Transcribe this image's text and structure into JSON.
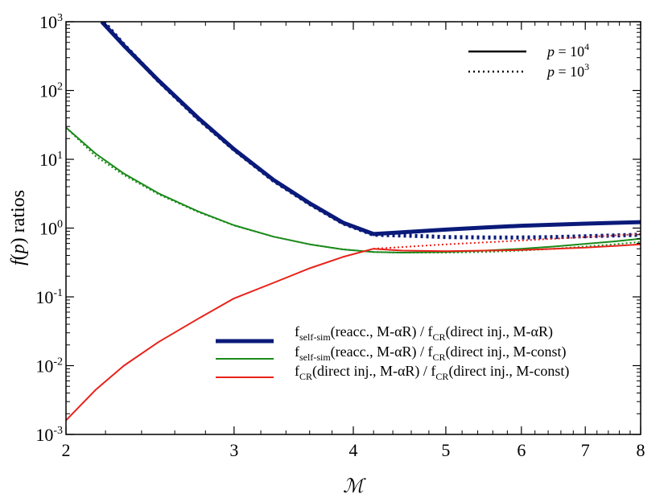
{
  "chart_data": {
    "type": "line",
    "xlabel": "ℳ",
    "ylabel_parts": {
      "f": "f",
      "open": "(",
      "p": "p",
      "close": ")",
      "rest": " ratios"
    },
    "xscale": "log",
    "yscale": "log",
    "xlim": [
      2,
      8
    ],
    "ylim": [
      0.001,
      1000
    ],
    "x_ticks": [
      2,
      3,
      4,
      5,
      6,
      7,
      8
    ],
    "x_tick_labels": [
      "2",
      "3",
      "4",
      "5",
      "6",
      "7",
      "8"
    ],
    "y_ticks": [
      {
        "value": 0.001,
        "base": "10",
        "exp": "-3"
      },
      {
        "value": 0.01,
        "base": "10",
        "exp": "-2"
      },
      {
        "value": 0.1,
        "base": "10",
        "exp": "-1"
      },
      {
        "value": 1,
        "base": "10",
        "exp": "0"
      },
      {
        "value": 10,
        "base": "10",
        "exp": "1"
      },
      {
        "value": 100,
        "base": "10",
        "exp": "2"
      },
      {
        "value": 1000,
        "base": "10",
        "exp": "3"
      }
    ],
    "line_style_legend": [
      {
        "style": "solid",
        "p": "p",
        "eq": " = ",
        "base": "10",
        "exp": "4"
      },
      {
        "style": "dotted",
        "p": "p",
        "eq": " = ",
        "base": "10",
        "exp": "3"
      }
    ],
    "series_legend": [
      {
        "color": "#0a1a7a",
        "width": 5,
        "parts": [
          "f",
          "self-sim",
          "(reacc., M-αR) / f",
          "CR",
          "(direct inj., M-αR)"
        ]
      },
      {
        "color": "#1a8a1a",
        "width": 2,
        "parts": [
          "f",
          "self-sim",
          "(reacc., M-αR) / f",
          "CR",
          "(direct inj., M-const)"
        ]
      },
      {
        "color": "#e8221a",
        "width": 2,
        "parts": [
          "f",
          "CR",
          "(direct inj., M-αR) / f",
          "CR",
          "(direct inj., M-const)"
        ]
      }
    ],
    "series": [
      {
        "color": "#0a1a7a",
        "width": 5,
        "style": "solid",
        "x": [
          2.18,
          2.3,
          2.5,
          2.75,
          3.0,
          3.3,
          3.6,
          3.9,
          4.2,
          4.5,
          5.0,
          5.5,
          6.0,
          6.5,
          7.0,
          7.5,
          8.0
        ],
        "y": [
          1000,
          450,
          140,
          40,
          14,
          5.0,
          2.3,
          1.2,
          0.82,
          0.87,
          0.95,
          1.02,
          1.08,
          1.12,
          1.16,
          1.19,
          1.22
        ]
      },
      {
        "color": "#0a1a7a",
        "width": 5,
        "style": "dotted",
        "x": [
          2.19,
          2.3,
          2.5,
          2.75,
          3.0,
          3.3,
          3.6,
          3.9,
          4.2,
          4.5,
          5.0,
          5.5,
          6.0,
          6.5,
          7.0,
          7.5,
          8.0
        ],
        "y": [
          1000,
          460,
          138,
          39,
          13.8,
          4.9,
          2.25,
          1.18,
          0.8,
          0.78,
          0.74,
          0.73,
          0.73,
          0.74,
          0.76,
          0.78,
          0.8
        ]
      },
      {
        "color": "#1a8a1a",
        "width": 2,
        "style": "solid",
        "x": [
          2.0,
          2.15,
          2.3,
          2.5,
          2.75,
          3.0,
          3.3,
          3.6,
          3.9,
          4.2,
          4.5,
          5.0,
          5.5,
          6.0,
          6.5,
          7.0,
          7.5,
          8.0
        ],
        "y": [
          29,
          12,
          6.2,
          3.2,
          1.75,
          1.1,
          0.75,
          0.58,
          0.49,
          0.45,
          0.44,
          0.45,
          0.47,
          0.5,
          0.54,
          0.59,
          0.64,
          0.7
        ]
      },
      {
        "color": "#1a8a1a",
        "width": 2,
        "style": "dotted",
        "x": [
          2.0,
          2.15,
          2.3,
          2.5,
          2.75,
          3.0,
          3.3,
          3.6,
          3.9,
          4.2,
          4.5,
          5.0,
          5.5,
          6.0,
          6.5,
          7.0,
          7.5,
          8.0
        ],
        "y": [
          29,
          11,
          5.9,
          3.1,
          1.72,
          1.09,
          0.75,
          0.58,
          0.49,
          0.45,
          0.44,
          0.44,
          0.45,
          0.47,
          0.5,
          0.54,
          0.58,
          0.63
        ]
      },
      {
        "color": "#e8221a",
        "width": 2,
        "style": "solid",
        "x": [
          2.0,
          2.15,
          2.3,
          2.5,
          2.75,
          3.0,
          3.3,
          3.6,
          3.9,
          4.2,
          4.5,
          5.0,
          5.5,
          6.0,
          6.5,
          7.0,
          7.5,
          8.0
        ],
        "y": [
          0.0016,
          0.0045,
          0.01,
          0.022,
          0.048,
          0.095,
          0.16,
          0.26,
          0.38,
          0.5,
          0.47,
          0.46,
          0.47,
          0.48,
          0.5,
          0.52,
          0.55,
          0.58
        ]
      },
      {
        "color": "#e8221a",
        "width": 2,
        "style": "dotted",
        "x": [
          4.2,
          4.5,
          5.0,
          5.5,
          6.0,
          6.5,
          7.0,
          7.5,
          8.0
        ],
        "y": [
          0.5,
          0.53,
          0.58,
          0.62,
          0.66,
          0.7,
          0.74,
          0.78,
          0.82
        ]
      }
    ]
  }
}
